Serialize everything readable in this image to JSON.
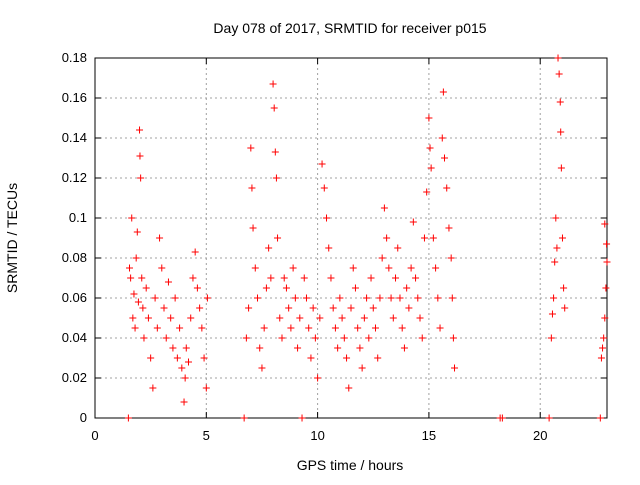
{
  "chart_data": {
    "type": "scatter",
    "title": "Day 078 of 2017, SRMTID for receiver p015",
    "xlabel": "GPS time / hours",
    "ylabel": "SRMTID / TECUs",
    "xlim": [
      0,
      23
    ],
    "ylim": [
      0,
      0.18
    ],
    "xticks": [
      0,
      5,
      10,
      15,
      20
    ],
    "yticks": [
      0,
      0.02,
      0.04,
      0.06,
      0.08,
      0.1,
      0.12,
      0.14,
      0.16,
      0.18
    ],
    "xtick_labels": [
      "0",
      "5",
      "10",
      "15",
      "20"
    ],
    "ytick_labels": [
      "0",
      "0.02",
      "0.04",
      "0.06",
      "0.08",
      "0.1",
      "0.12",
      "0.14",
      "0.16",
      "0.18"
    ],
    "grid": true,
    "marker": "+",
    "color": "#ff0000",
    "series": [
      {
        "name": "SRMTID",
        "points": [
          [
            1.5,
            0.0
          ],
          [
            1.55,
            0.075
          ],
          [
            1.6,
            0.07
          ],
          [
            1.65,
            0.1
          ],
          [
            1.7,
            0.05
          ],
          [
            1.75,
            0.062
          ],
          [
            1.8,
            0.045
          ],
          [
            1.85,
            0.08
          ],
          [
            1.9,
            0.093
          ],
          [
            1.95,
            0.058
          ],
          [
            2.0,
            0.144
          ],
          [
            2.02,
            0.131
          ],
          [
            2.05,
            0.12
          ],
          [
            2.1,
            0.07
          ],
          [
            2.15,
            0.055
          ],
          [
            2.2,
            0.04
          ],
          [
            2.3,
            0.065
          ],
          [
            2.4,
            0.05
          ],
          [
            2.5,
            0.03
          ],
          [
            2.6,
            0.015
          ],
          [
            2.7,
            0.06
          ],
          [
            2.8,
            0.045
          ],
          [
            2.9,
            0.09
          ],
          [
            3.0,
            0.075
          ],
          [
            3.1,
            0.055
          ],
          [
            3.2,
            0.04
          ],
          [
            3.3,
            0.068
          ],
          [
            3.4,
            0.05
          ],
          [
            3.5,
            0.035
          ],
          [
            3.6,
            0.06
          ],
          [
            3.7,
            0.03
          ],
          [
            3.8,
            0.045
          ],
          [
            3.9,
            0.025
          ],
          [
            4.0,
            0.008
          ],
          [
            4.05,
            0.02
          ],
          [
            4.1,
            0.035
          ],
          [
            4.2,
            0.028
          ],
          [
            4.3,
            0.05
          ],
          [
            4.4,
            0.07
          ],
          [
            4.5,
            0.083
          ],
          [
            4.6,
            0.065
          ],
          [
            4.7,
            0.055
          ],
          [
            4.8,
            0.045
          ],
          [
            4.9,
            0.03
          ],
          [
            5.0,
            0.015
          ],
          [
            5.05,
            0.06
          ],
          [
            6.7,
            0.0
          ],
          [
            6.8,
            0.04
          ],
          [
            6.9,
            0.055
          ],
          [
            7.0,
            0.135
          ],
          [
            7.05,
            0.115
          ],
          [
            7.1,
            0.095
          ],
          [
            7.2,
            0.075
          ],
          [
            7.3,
            0.06
          ],
          [
            7.4,
            0.035
          ],
          [
            7.5,
            0.025
          ],
          [
            7.6,
            0.045
          ],
          [
            7.7,
            0.065
          ],
          [
            7.8,
            0.085
          ],
          [
            7.9,
            0.07
          ],
          [
            8.0,
            0.167
          ],
          [
            8.05,
            0.155
          ],
          [
            8.1,
            0.133
          ],
          [
            8.15,
            0.12
          ],
          [
            8.2,
            0.09
          ],
          [
            8.3,
            0.05
          ],
          [
            8.4,
            0.04
          ],
          [
            8.5,
            0.07
          ],
          [
            8.6,
            0.065
          ],
          [
            8.7,
            0.055
          ],
          [
            8.8,
            0.045
          ],
          [
            8.9,
            0.075
          ],
          [
            9.0,
            0.06
          ],
          [
            9.1,
            0.035
          ],
          [
            9.2,
            0.05
          ],
          [
            9.3,
            0.0
          ],
          [
            9.4,
            0.07
          ],
          [
            9.5,
            0.06
          ],
          [
            9.6,
            0.045
          ],
          [
            9.7,
            0.03
          ],
          [
            9.8,
            0.055
          ],
          [
            9.9,
            0.04
          ],
          [
            10.0,
            0.02
          ],
          [
            10.1,
            0.05
          ],
          [
            10.2,
            0.127
          ],
          [
            10.3,
            0.115
          ],
          [
            10.4,
            0.1
          ],
          [
            10.5,
            0.085
          ],
          [
            10.6,
            0.07
          ],
          [
            10.7,
            0.055
          ],
          [
            10.8,
            0.045
          ],
          [
            10.9,
            0.035
          ],
          [
            11.0,
            0.06
          ],
          [
            11.1,
            0.05
          ],
          [
            11.2,
            0.04
          ],
          [
            11.3,
            0.03
          ],
          [
            11.4,
            0.015
          ],
          [
            11.5,
            0.055
          ],
          [
            11.6,
            0.075
          ],
          [
            11.7,
            0.065
          ],
          [
            11.8,
            0.045
          ],
          [
            11.9,
            0.035
          ],
          [
            12.0,
            0.025
          ],
          [
            12.1,
            0.05
          ],
          [
            12.2,
            0.06
          ],
          [
            12.3,
            0.04
          ],
          [
            12.4,
            0.07
          ],
          [
            12.5,
            0.055
          ],
          [
            12.6,
            0.045
          ],
          [
            12.7,
            0.03
          ],
          [
            12.8,
            0.06
          ],
          [
            12.9,
            0.08
          ],
          [
            13.0,
            0.105
          ],
          [
            13.1,
            0.09
          ],
          [
            13.2,
            0.075
          ],
          [
            13.3,
            0.06
          ],
          [
            13.4,
            0.05
          ],
          [
            13.5,
            0.07
          ],
          [
            13.6,
            0.085
          ],
          [
            13.7,
            0.06
          ],
          [
            13.8,
            0.045
          ],
          [
            13.9,
            0.035
          ],
          [
            14.0,
            0.065
          ],
          [
            14.1,
            0.055
          ],
          [
            14.2,
            0.075
          ],
          [
            14.3,
            0.098
          ],
          [
            14.4,
            0.07
          ],
          [
            14.5,
            0.06
          ],
          [
            14.6,
            0.05
          ],
          [
            14.7,
            0.04
          ],
          [
            14.8,
            0.09
          ],
          [
            14.9,
            0.113
          ],
          [
            15.0,
            0.15
          ],
          [
            15.05,
            0.135
          ],
          [
            15.1,
            0.125
          ],
          [
            15.2,
            0.09
          ],
          [
            15.3,
            0.075
          ],
          [
            15.4,
            0.06
          ],
          [
            15.5,
            0.045
          ],
          [
            15.6,
            0.14
          ],
          [
            15.65,
            0.163
          ],
          [
            15.7,
            0.13
          ],
          [
            15.8,
            0.115
          ],
          [
            15.9,
            0.095
          ],
          [
            16.0,
            0.08
          ],
          [
            16.05,
            0.06
          ],
          [
            16.1,
            0.04
          ],
          [
            16.15,
            0.025
          ],
          [
            18.2,
            0.0
          ],
          [
            18.3,
            0.0
          ],
          [
            20.4,
            0.0
          ],
          [
            20.5,
            0.04
          ],
          [
            20.55,
            0.052
          ],
          [
            20.6,
            0.06
          ],
          [
            20.65,
            0.078
          ],
          [
            20.7,
            0.1
          ],
          [
            20.75,
            0.085
          ],
          [
            20.8,
            0.18
          ],
          [
            20.85,
            0.172
          ],
          [
            20.9,
            0.158
          ],
          [
            20.92,
            0.143
          ],
          [
            20.95,
            0.125
          ],
          [
            21.0,
            0.09
          ],
          [
            21.05,
            0.065
          ],
          [
            21.1,
            0.055
          ],
          [
            22.7,
            0.0
          ],
          [
            22.75,
            0.03
          ],
          [
            22.8,
            0.035
          ],
          [
            22.85,
            0.04
          ],
          [
            22.9,
            0.05
          ],
          [
            22.95,
            0.065
          ],
          [
            23.0,
            0.078
          ],
          [
            22.98,
            0.087
          ],
          [
            22.9,
            0.097
          ]
        ]
      }
    ]
  }
}
